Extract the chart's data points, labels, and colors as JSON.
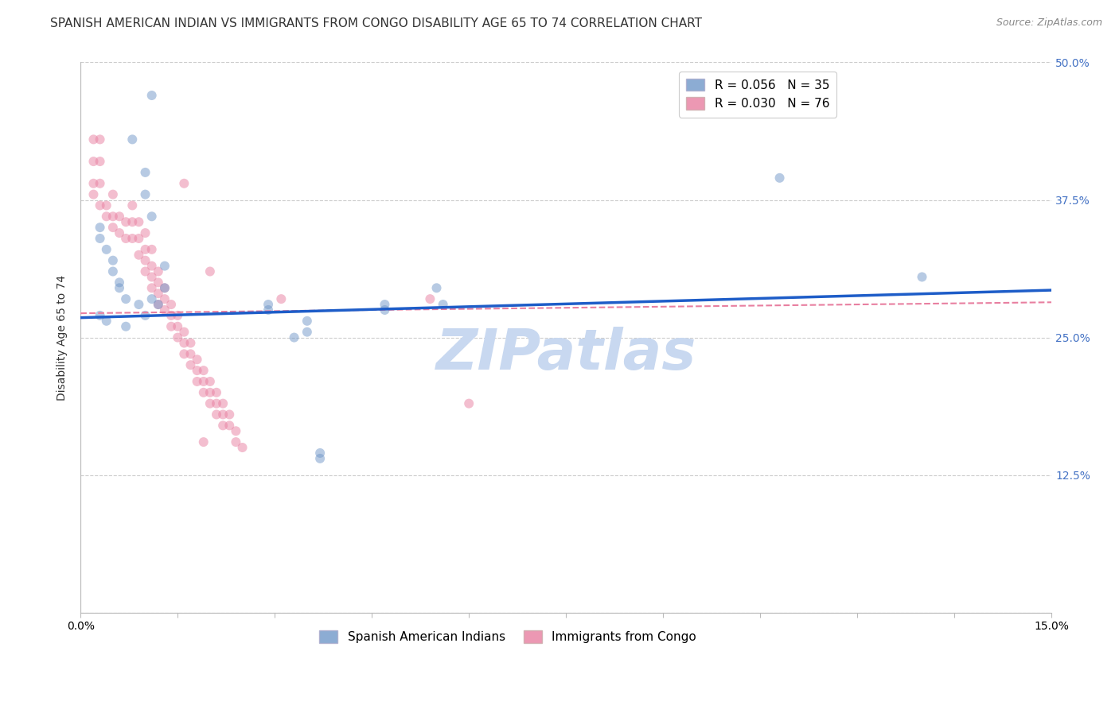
{
  "title": "SPANISH AMERICAN INDIAN VS IMMIGRANTS FROM CONGO DISABILITY AGE 65 TO 74 CORRELATION CHART",
  "source": "Source: ZipAtlas.com",
  "ylabel": "Disability Age 65 to 74",
  "xlim": [
    0.0,
    0.15
  ],
  "ylim": [
    0.0,
    0.5
  ],
  "xticks": [
    0.0,
    0.015,
    0.03,
    0.045,
    0.06,
    0.075,
    0.09,
    0.105,
    0.12,
    0.135,
    0.15
  ],
  "xticklabels": [
    "0.0%",
    "",
    "",
    "",
    "",
    "",
    "",
    "",
    "",
    "",
    "15.0%"
  ],
  "yticks": [
    0.0,
    0.125,
    0.25,
    0.375,
    0.5
  ],
  "ylabels_left": [
    "",
    "",
    "",
    "",
    ""
  ],
  "ylabels_right": [
    "",
    "12.5%",
    "25.0%",
    "37.5%",
    "50.0%"
  ],
  "watermark": "ZIPatlas",
  "legend_blue_r": "R = 0.056",
  "legend_blue_n": "N = 35",
  "legend_pink_r": "R = 0.030",
  "legend_pink_n": "N = 76",
  "blue_scatter_x": [
    0.011,
    0.008,
    0.01,
    0.01,
    0.011,
    0.013,
    0.013,
    0.011,
    0.009,
    0.003,
    0.003,
    0.004,
    0.005,
    0.005,
    0.006,
    0.006,
    0.007,
    0.003,
    0.004,
    0.007,
    0.012,
    0.01,
    0.029,
    0.029,
    0.047,
    0.047,
    0.056,
    0.035,
    0.035,
    0.033,
    0.108,
    0.055,
    0.037,
    0.037,
    0.13
  ],
  "blue_scatter_y": [
    0.47,
    0.43,
    0.4,
    0.38,
    0.36,
    0.315,
    0.295,
    0.285,
    0.28,
    0.35,
    0.34,
    0.33,
    0.32,
    0.31,
    0.3,
    0.295,
    0.285,
    0.27,
    0.265,
    0.26,
    0.28,
    0.27,
    0.28,
    0.275,
    0.28,
    0.275,
    0.28,
    0.265,
    0.255,
    0.25,
    0.395,
    0.295,
    0.145,
    0.14,
    0.305
  ],
  "pink_scatter_x": [
    0.003,
    0.003,
    0.004,
    0.004,
    0.005,
    0.005,
    0.005,
    0.006,
    0.006,
    0.007,
    0.007,
    0.008,
    0.008,
    0.008,
    0.009,
    0.009,
    0.009,
    0.01,
    0.01,
    0.01,
    0.01,
    0.011,
    0.011,
    0.011,
    0.011,
    0.012,
    0.012,
    0.012,
    0.012,
    0.013,
    0.013,
    0.013,
    0.014,
    0.014,
    0.014,
    0.015,
    0.015,
    0.015,
    0.016,
    0.016,
    0.016,
    0.017,
    0.017,
    0.017,
    0.018,
    0.018,
    0.018,
    0.019,
    0.019,
    0.019,
    0.02,
    0.02,
    0.02,
    0.021,
    0.021,
    0.021,
    0.022,
    0.022,
    0.022,
    0.023,
    0.023,
    0.024,
    0.024,
    0.025,
    0.002,
    0.002,
    0.002,
    0.002,
    0.003,
    0.003,
    0.06,
    0.031,
    0.019,
    0.054,
    0.016,
    0.02
  ],
  "pink_scatter_y": [
    0.39,
    0.37,
    0.37,
    0.36,
    0.38,
    0.36,
    0.35,
    0.36,
    0.345,
    0.355,
    0.34,
    0.37,
    0.355,
    0.34,
    0.355,
    0.34,
    0.325,
    0.345,
    0.33,
    0.32,
    0.31,
    0.33,
    0.315,
    0.305,
    0.295,
    0.31,
    0.3,
    0.29,
    0.28,
    0.295,
    0.285,
    0.275,
    0.28,
    0.27,
    0.26,
    0.27,
    0.26,
    0.25,
    0.255,
    0.245,
    0.235,
    0.245,
    0.235,
    0.225,
    0.23,
    0.22,
    0.21,
    0.22,
    0.21,
    0.2,
    0.21,
    0.2,
    0.19,
    0.2,
    0.19,
    0.18,
    0.19,
    0.18,
    0.17,
    0.18,
    0.17,
    0.165,
    0.155,
    0.15,
    0.43,
    0.41,
    0.39,
    0.38,
    0.43,
    0.41,
    0.19,
    0.285,
    0.155,
    0.285,
    0.39,
    0.31
  ],
  "blue_line_x": [
    0.0,
    0.15
  ],
  "blue_line_y": [
    0.268,
    0.293
  ],
  "pink_line_x": [
    0.0,
    0.15
  ],
  "pink_line_y": [
    0.272,
    0.282
  ],
  "blue_color": "#7097C8",
  "pink_color": "#E87FA0",
  "blue_line_color": "#1E5DC8",
  "pink_line_color": "#E87FA0",
  "scatter_alpha": 0.5,
  "scatter_size": 75,
  "grid_color": "#CCCCCC",
  "background_color": "#FFFFFF",
  "title_fontsize": 11,
  "axis_label_fontsize": 10,
  "tick_fontsize": 10,
  "watermark_color": "#C8D8F0",
  "watermark_fontsize": 52,
  "right_tick_color": "#4472C4"
}
